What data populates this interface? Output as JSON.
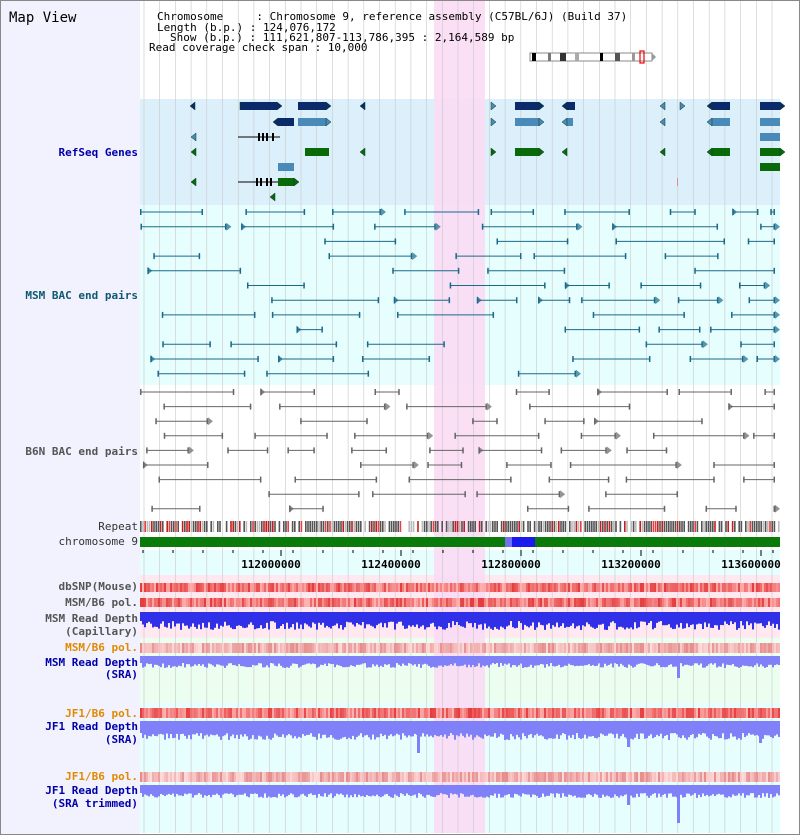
{
  "view_title": "Map View",
  "header": {
    "line1": "Chromosome     : Chromosome 9, reference assembly (C57BL/6J) (Build 37)",
    "line2": "Length (b.p.) : 124,076,172",
    "line3": "Show (b.p.) : 111,621,807-113,786,395 : 2,164,589 bp",
    "line4": "Read coverage check span : 10,000"
  },
  "tracks": {
    "refseq": "RefSeq Genes",
    "msm_bac": "MSM BAC end pairs",
    "b6n_bac": "B6N BAC end pairs",
    "repeat": "Repeat",
    "chromosome": "chromosome 9",
    "dbsnp": "dbSNP(Mouse)",
    "msm_b6_pol_cap": "MSM/B6 pol.",
    "msm_depth_cap_1": "MSM Read Depth",
    "msm_depth_cap_2": "(Capillary)",
    "msm_b6_pol_sra": "MSM/B6 pol.",
    "msm_depth_sra_1": "MSM Read Depth",
    "msm_depth_sra_2": "(SRA)",
    "jf1_b6_pol": "JF1/B6 pol.",
    "jf1_depth_sra_1": "JF1 Read Depth",
    "jf1_depth_sra_2": "(SRA)",
    "jf1_b6_pol_trim": "JF1/B6 pol.",
    "jf1_depth_trim_1": "JF1 Read Depth",
    "jf1_depth_trim_2": "(SRA trimmed)"
  },
  "axis_ticks": [
    "112000000",
    "112400000",
    "112800000",
    "113200000",
    "113600000"
  ],
  "colors": {
    "refseq_bg": "#dcf0fc",
    "bac_bg": "#e6fefe",
    "highlight": "#fadcf4",
    "gene_navy": "#0a2a6a",
    "gene_steel": "#4a8ab8",
    "gene_green": "#0a6a0a",
    "bac_teal": "#1a6a8a",
    "bac_gray": "#666666",
    "chrom_green": "#0a7a0a",
    "chrom_blue": "#1a1aee",
    "depth_blue": "#3030e8",
    "depth_light": "#8080f8",
    "snp_red": "#e83030"
  }
}
